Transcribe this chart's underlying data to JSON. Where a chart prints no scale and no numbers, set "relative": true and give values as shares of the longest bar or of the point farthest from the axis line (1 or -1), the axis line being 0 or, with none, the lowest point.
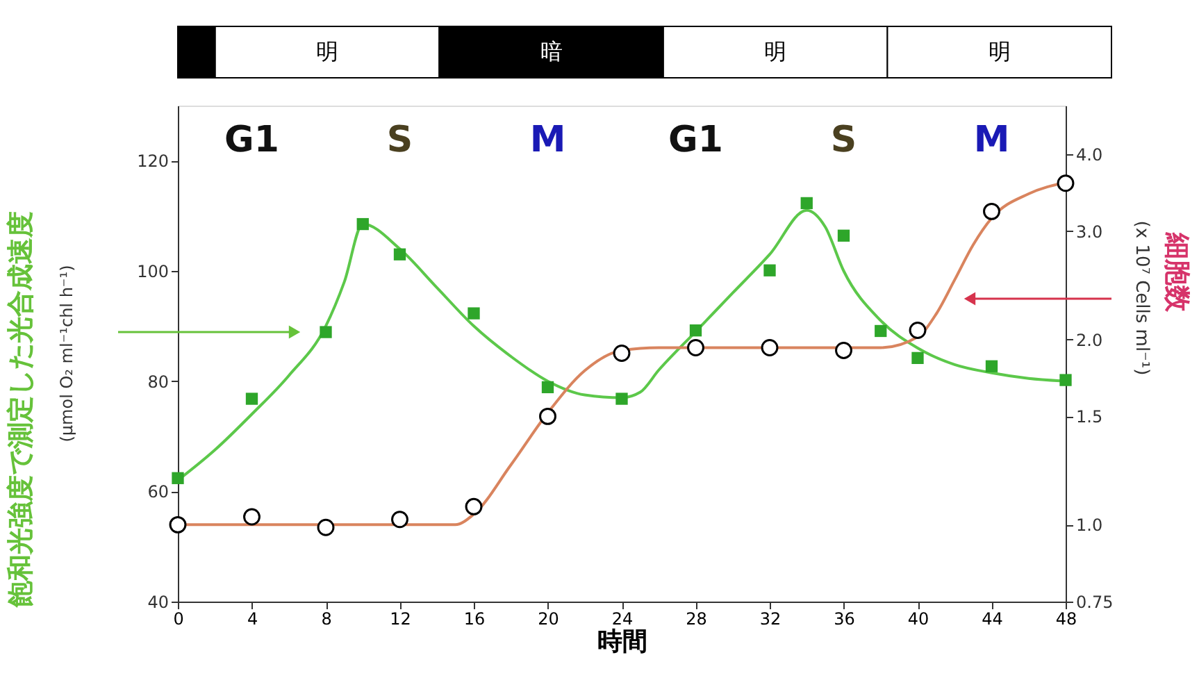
{
  "chart_data": [
    {
      "type": "bar",
      "orientation": "horizontal",
      "stacked": true,
      "relative": true,
      "categories": [
        null
      ],
      "series": [
        {
          "color": "#000000",
          "values": [
            0.04
          ]
        },
        {
          "name": "明",
          "color": "#ffffff",
          "values": [
            0.24
          ]
        },
        {
          "name": "暗",
          "color": "#000000",
          "values": [
            0.24
          ]
        },
        {
          "name": "明",
          "color": "#ffffff",
          "values": [
            0.24
          ]
        },
        {
          "name": "明",
          "color": "#ffffff",
          "values": [
            0.24
          ]
        }
      ]
    },
    {
      "type": "scatter",
      "xlabel": "時間",
      "ylabel": [
        "飽和光強度で測定した光合成速度",
        "(µmol O₂ ml⁻¹chl h⁻¹)"
      ],
      "y2label": [
        "(x 10⁷ Cells ml⁻¹)",
        "細胞数"
      ],
      "xlim": [
        0,
        48
      ],
      "xticks": [
        0,
        4,
        8,
        12,
        16,
        20,
        24,
        28,
        32,
        36,
        40,
        44,
        48
      ],
      "ylim": [
        40,
        130
      ],
      "yticks": [
        40,
        60,
        80,
        100,
        120
      ],
      "y2lim": [
        0.75,
        4.8
      ],
      "y2ticks": [
        0.75,
        {
          "value": 1,
          "label": "1.0"
        },
        1.5,
        {
          "value": 2,
          "label": "2.0"
        },
        {
          "value": 3,
          "label": "3.0"
        },
        {
          "value": 4,
          "label": "4.0"
        }
      ],
      "log": "y2",
      "grid": false,
      "series": [
        {
          "type": "line",
          "color": "#5cc84a",
          "marker": "none",
          "x": [
            0,
            2,
            4,
            6,
            8,
            9,
            10,
            12,
            14,
            16,
            18,
            20,
            22,
            24,
            25,
            26,
            28,
            30,
            32,
            34,
            35,
            36,
            38,
            40,
            42,
            44,
            46,
            48
          ],
          "values": [
            62,
            67.5,
            74,
            81,
            90,
            98,
            108.5,
            104,
            97,
            90,
            84.5,
            80,
            77.5,
            77,
            78,
            82,
            89,
            96,
            103,
            111,
            108,
            100,
            91,
            86,
            83,
            81.5,
            80.5,
            80
          ]
        },
        {
          "type": "scatter",
          "marker": "square",
          "color": "#2ea62a",
          "x": [
            0,
            4,
            8,
            10,
            12,
            16,
            20,
            24,
            28,
            32,
            34,
            36,
            38,
            40,
            44,
            48
          ],
          "values": [
            62.4,
            76.8,
            88.9,
            108.5,
            103.0,
            92.3,
            78.9,
            76.8,
            89.2,
            100.1,
            112.3,
            106.4,
            89.1,
            84.2,
            82.7,
            80.2
          ]
        },
        {
          "type": "line",
          "axis": "y2",
          "color": "#d9845e",
          "marker": "none",
          "x": [
            0,
            14,
            15,
            16,
            18,
            20,
            22,
            24,
            26,
            38,
            40,
            41,
            42,
            43,
            44,
            46,
            48
          ],
          "values": [
            1.0,
            1.0,
            1.0,
            1.04,
            1.25,
            1.52,
            1.78,
            1.92,
            1.94,
            1.94,
            2.02,
            2.2,
            2.5,
            2.85,
            3.15,
            3.45,
            3.6
          ]
        },
        {
          "type": "scatter",
          "axis": "y2",
          "marker": "circle",
          "color": "#000000",
          "x": [
            0,
            4,
            8,
            12,
            16,
            20,
            24,
            28,
            32,
            36,
            40,
            44,
            48
          ],
          "values": [
            1.0,
            1.03,
            0.99,
            1.02,
            1.07,
            1.5,
            1.9,
            1.94,
            1.94,
            1.92,
            2.07,
            3.23,
            3.59
          ]
        }
      ],
      "annotations": [
        "G1",
        "S",
        "M",
        "G1",
        "S",
        "M"
      ]
    }
  ]
}
